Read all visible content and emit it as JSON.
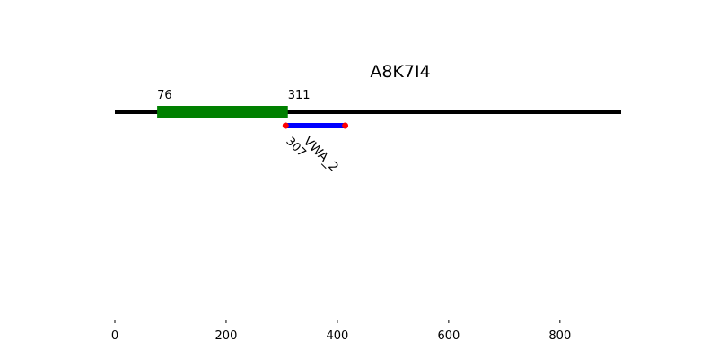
{
  "chart_data": {
    "type": "protein-domain-map",
    "title": "A8K7I4",
    "xlim": [
      0,
      910
    ],
    "protein_length": 910,
    "x_ticks": [
      0,
      200,
      400,
      600,
      800
    ],
    "colors": {
      "backbone": "#000000",
      "region": "#008000",
      "domain": "#0000ff",
      "domain_ends": "#ff0000"
    },
    "regions": [
      {
        "start": 76,
        "end": 311,
        "start_label": "76",
        "end_label": "311"
      }
    ],
    "domains": [
      {
        "name": "VWA_2",
        "start": 307,
        "end": 414,
        "start_label": "307"
      }
    ]
  }
}
